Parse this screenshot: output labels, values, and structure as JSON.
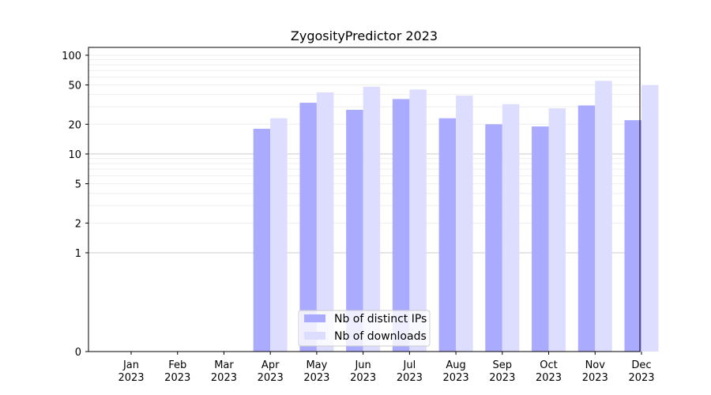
{
  "chart_data": {
    "type": "bar",
    "title": "ZygosityPredictor 2023",
    "y_scale": "symlog",
    "y_ticks": [
      0,
      1,
      2,
      5,
      10,
      20,
      50,
      100
    ],
    "y_tick_labels": [
      "0",
      "1",
      "2",
      "5",
      "10",
      "20",
      "50",
      "100"
    ],
    "ylim": [
      0,
      120
    ],
    "categories": [
      {
        "month": "Jan",
        "year": "2023"
      },
      {
        "month": "Feb",
        "year": "2023"
      },
      {
        "month": "Mar",
        "year": "2023"
      },
      {
        "month": "Apr",
        "year": "2023"
      },
      {
        "month": "May",
        "year": "2023"
      },
      {
        "month": "Jun",
        "year": "2023"
      },
      {
        "month": "Jul",
        "year": "2023"
      },
      {
        "month": "Aug",
        "year": "2023"
      },
      {
        "month": "Sep",
        "year": "2023"
      },
      {
        "month": "Oct",
        "year": "2023"
      },
      {
        "month": "Nov",
        "year": "2023"
      },
      {
        "month": "Dec",
        "year": "2023"
      }
    ],
    "series": [
      {
        "name": "Nb of distinct IPs",
        "color": "#aaaaff",
        "values": [
          0,
          0,
          0,
          18,
          33,
          28,
          36,
          23,
          20,
          19,
          31,
          22
        ]
      },
      {
        "name": "Nb of downloads",
        "color": "#ddddff",
        "values": [
          0,
          0,
          0,
          23,
          42,
          48,
          45,
          39,
          32,
          29,
          55,
          50
        ]
      }
    ],
    "grid": {
      "major_color": "#cccccc",
      "minor_color": "#eeeeee"
    },
    "legend_position": "bottom-center"
  }
}
